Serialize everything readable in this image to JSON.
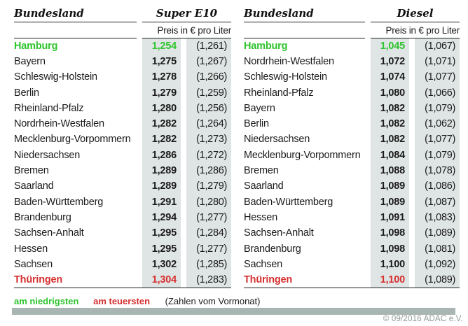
{
  "tables": [
    {
      "name_header": "Bundesland",
      "fuel_header": "Super E10",
      "unit_header": "Preis in € pro Liter",
      "rows": [
        {
          "state": "Hamburg",
          "price": "1,254",
          "prev": "(1,261)",
          "highlight": "lowest"
        },
        {
          "state": "Bayern",
          "price": "1,275",
          "prev": "(1,267)",
          "highlight": "none"
        },
        {
          "state": "Schleswig-Holstein",
          "price": "1,278",
          "prev": "(1,266)",
          "highlight": "none"
        },
        {
          "state": "Berlin",
          "price": "1,279",
          "prev": "(1,259)",
          "highlight": "none"
        },
        {
          "state": "Rheinland-Pfalz",
          "price": "1,280",
          "prev": "(1,256)",
          "highlight": "none"
        },
        {
          "state": "Nordrhein-Westfalen",
          "price": "1,282",
          "prev": "(1,264)",
          "highlight": "none"
        },
        {
          "state": "Mecklenburg-Vorpommern",
          "price": "1,282",
          "prev": "(1,273)",
          "highlight": "none"
        },
        {
          "state": "Niedersachsen",
          "price": "1,286",
          "prev": "(1,272)",
          "highlight": "none"
        },
        {
          "state": "Bremen",
          "price": "1,289",
          "prev": "(1,286)",
          "highlight": "none"
        },
        {
          "state": "Saarland",
          "price": "1,289",
          "prev": "(1,279)",
          "highlight": "none"
        },
        {
          "state": "Baden-Württemberg",
          "price": "1,291",
          "prev": "(1,280)",
          "highlight": "none"
        },
        {
          "state": "Brandenburg",
          "price": "1,294",
          "prev": "(1,277)",
          "highlight": "none"
        },
        {
          "state": "Sachsen-Anhalt",
          "price": "1,295",
          "prev": "(1,284)",
          "highlight": "none"
        },
        {
          "state": "Hessen",
          "price": "1,295",
          "prev": "(1,277)",
          "highlight": "none"
        },
        {
          "state": "Sachsen",
          "price": "1,302",
          "prev": "(1,285)",
          "highlight": "none"
        },
        {
          "state": "Thüringen",
          "price": "1,304",
          "prev": "(1,283)",
          "highlight": "highest"
        }
      ]
    },
    {
      "name_header": "Bundesland",
      "fuel_header": "Diesel",
      "unit_header": "Preis in € pro Liter",
      "rows": [
        {
          "state": "Hamburg",
          "price": "1,045",
          "prev": "(1,067)",
          "highlight": "lowest"
        },
        {
          "state": "Nordrhein-Westfalen",
          "price": "1,072",
          "prev": "(1,071)",
          "highlight": "none"
        },
        {
          "state": "Schleswig-Holstein",
          "price": "1,074",
          "prev": "(1,077)",
          "highlight": "none"
        },
        {
          "state": "Rheinland-Pfalz",
          "price": "1,080",
          "prev": "(1,066)",
          "highlight": "none"
        },
        {
          "state": "Bayern",
          "price": "1,082",
          "prev": "(1,079)",
          "highlight": "none"
        },
        {
          "state": "Berlin",
          "price": "1,082",
          "prev": "(1,062)",
          "highlight": "none"
        },
        {
          "state": "Niedersachsen",
          "price": "1,082",
          "prev": "(1,077)",
          "highlight": "none"
        },
        {
          "state": "Mecklenburg-Vorpommern",
          "price": "1,084",
          "prev": "(1,079)",
          "highlight": "none"
        },
        {
          "state": "Bremen",
          "price": "1,088",
          "prev": "(1,078)",
          "highlight": "none"
        },
        {
          "state": "Saarland",
          "price": "1,089",
          "prev": "(1,086)",
          "highlight": "none"
        },
        {
          "state": "Baden-Württemberg",
          "price": "1,089",
          "prev": "(1,087)",
          "highlight": "none"
        },
        {
          "state": "Hessen",
          "price": "1,091",
          "prev": "(1,083)",
          "highlight": "none"
        },
        {
          "state": "Sachsen-Anhalt",
          "price": "1,098",
          "prev": "(1,089)",
          "highlight": "none"
        },
        {
          "state": "Brandenburg",
          "price": "1,098",
          "prev": "(1,081)",
          "highlight": "none"
        },
        {
          "state": "Sachsen",
          "price": "1,100",
          "prev": "(1,092)",
          "highlight": "none"
        },
        {
          "state": "Thüringen",
          "price": "1,100",
          "prev": "(1,089)",
          "highlight": "highest"
        }
      ]
    }
  ],
  "legend": {
    "lowest_label": "am niedrigsten",
    "highest_label": "am teuersten",
    "note": "(Zahlen vom Vormonat)"
  },
  "footer": {
    "copyright": "© 09/2016 ADAC e.V."
  },
  "colors": {
    "lowest": "#2ec42e",
    "highest": "#d62f2f",
    "column_background": "#dfe5e4",
    "bar": "#a9b5b2"
  },
  "chart_data": [
    {
      "type": "table",
      "title": "Super E10 – Preis in € pro Liter",
      "columns": [
        "Bundesland",
        "Preis",
        "Vormonat"
      ],
      "rows": [
        [
          "Hamburg",
          1.254,
          1.261
        ],
        [
          "Bayern",
          1.275,
          1.267
        ],
        [
          "Schleswig-Holstein",
          1.278,
          1.266
        ],
        [
          "Berlin",
          1.279,
          1.259
        ],
        [
          "Rheinland-Pfalz",
          1.28,
          1.256
        ],
        [
          "Nordrhein-Westfalen",
          1.282,
          1.264
        ],
        [
          "Mecklenburg-Vorpommern",
          1.282,
          1.273
        ],
        [
          "Niedersachsen",
          1.286,
          1.272
        ],
        [
          "Bremen",
          1.289,
          1.286
        ],
        [
          "Saarland",
          1.289,
          1.279
        ],
        [
          "Baden-Württemberg",
          1.291,
          1.28
        ],
        [
          "Brandenburg",
          1.294,
          1.277
        ],
        [
          "Sachsen-Anhalt",
          1.295,
          1.284
        ],
        [
          "Hessen",
          1.295,
          1.277
        ],
        [
          "Sachsen",
          1.302,
          1.285
        ],
        [
          "Thüringen",
          1.304,
          1.283
        ]
      ],
      "annotations": [
        "Hamburg = am niedrigsten (grün)",
        "Thüringen = am teuersten (rot)"
      ]
    },
    {
      "type": "table",
      "title": "Diesel – Preis in € pro Liter",
      "columns": [
        "Bundesland",
        "Preis",
        "Vormonat"
      ],
      "rows": [
        [
          "Hamburg",
          1.045,
          1.067
        ],
        [
          "Nordrhein-Westfalen",
          1.072,
          1.071
        ],
        [
          "Schleswig-Holstein",
          1.074,
          1.077
        ],
        [
          "Rheinland-Pfalz",
          1.08,
          1.066
        ],
        [
          "Bayern",
          1.082,
          1.079
        ],
        [
          "Berlin",
          1.082,
          1.062
        ],
        [
          "Niedersachsen",
          1.082,
          1.077
        ],
        [
          "Mecklenburg-Vorpommern",
          1.084,
          1.079
        ],
        [
          "Bremen",
          1.088,
          1.078
        ],
        [
          "Saarland",
          1.089,
          1.086
        ],
        [
          "Baden-Württemberg",
          1.089,
          1.087
        ],
        [
          "Hessen",
          1.091,
          1.083
        ],
        [
          "Sachsen-Anhalt",
          1.098,
          1.089
        ],
        [
          "Brandenburg",
          1.098,
          1.081
        ],
        [
          "Sachsen",
          1.1,
          1.092
        ],
        [
          "Thüringen",
          1.1,
          1.089
        ]
      ],
      "annotations": [
        "Hamburg = am niedrigsten (grün)",
        "Thüringen = am teuersten (rot)"
      ]
    }
  ]
}
